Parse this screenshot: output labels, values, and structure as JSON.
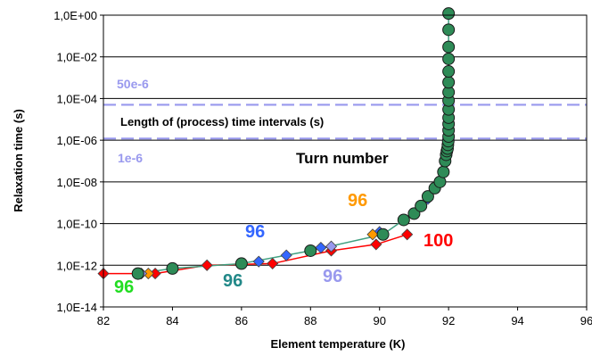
{
  "chart_data": {
    "type": "scatter",
    "xlabel": "Element temperature (K)",
    "ylabel": "Relaxation time (s)",
    "xlim": [
      82,
      96
    ],
    "ylim_log10": [
      -14,
      0
    ],
    "x_ticks": [
      "82",
      "84",
      "86",
      "88",
      "90",
      "92",
      "94",
      "96"
    ],
    "y_ticks": [
      "1,0E-14",
      "1,0E-12",
      "1,0E-10",
      "1,0E-08",
      "1,0E-06",
      "1,0E-04",
      "1,0E-02",
      "1,0E+00"
    ],
    "grid": "horizontal",
    "plot_border_color": "#000000",
    "reference_lines": [
      {
        "y": 5e-05,
        "color": "#9999ee",
        "style": "dashed"
      },
      {
        "y": 1.2e-06,
        "color": "#9999ee",
        "style": "dashed"
      }
    ],
    "series": [
      {
        "color": "#ff0000",
        "marker": "diamond",
        "x": [
          82.0,
          83.0,
          83.5,
          85.0,
          86.9,
          88.6,
          89.9,
          90.8
        ],
        "y": [
          4e-13,
          4e-13,
          4e-13,
          1e-12,
          1.2e-12,
          5e-12,
          1e-11,
          3e-11
        ]
      },
      {
        "color": "#3366ff",
        "marker": "diamond",
        "x": [
          86.5,
          87.3,
          88.3,
          90.0,
          91.4
        ],
        "y": [
          1.5e-12,
          3e-12,
          7e-12,
          4e-11,
          1.5e-09
        ]
      },
      {
        "color": "#ff9900",
        "marker": "diamond",
        "x": [
          83.3,
          89.8
        ],
        "y": [
          4e-13,
          3e-11
        ]
      },
      {
        "color": "#9999ee",
        "marker": "diamond",
        "x": [
          83.1,
          88.6
        ],
        "y": [
          4e-13,
          8e-12
        ]
      },
      {
        "color": "#2e8b57",
        "marker": "circle",
        "connector": "#40a080",
        "x": [
          83.0,
          84.0,
          86.0,
          88.0,
          90.1,
          90.7,
          91.0,
          91.2,
          91.4,
          91.6,
          91.75,
          91.85,
          91.9,
          91.93,
          91.95,
          91.97,
          91.98,
          91.99,
          92.0,
          92.0,
          92.0,
          92.0,
          92.0,
          92.0,
          92.0,
          92.0,
          92.0,
          92.0,
          92.0,
          92.0,
          92.0
        ],
        "y": [
          4e-13,
          7e-13,
          1.2e-12,
          5e-12,
          3e-11,
          1.5e-10,
          3e-10,
          7e-10,
          2e-09,
          5e-09,
          1e-08,
          3e-08,
          1e-07,
          2e-07,
          3e-07,
          4e-07,
          6e-07,
          9e-07,
          1.5e-06,
          3e-06,
          6e-06,
          1.2e-05,
          3e-05,
          8e-05,
          0.0002,
          0.0006,
          0.002,
          0.008,
          0.03,
          0.2,
          1.2
        ]
      }
    ],
    "annotations": [
      {
        "text": "50e-6",
        "color": "#9999ee",
        "size": 14
      },
      {
        "text": "Length of (process) time intervals (s)",
        "color": "#000000",
        "size": 13
      },
      {
        "text": "1e-6",
        "color": "#9999ee",
        "size": 14
      },
      {
        "text": "Turn number",
        "color": "#000000",
        "size": 17
      },
      {
        "text": "96",
        "color": "#ff9900",
        "size": 20
      },
      {
        "text": "96",
        "color": "#3366ff",
        "size": 20
      },
      {
        "text": "100",
        "color": "#ff0000",
        "size": 20
      },
      {
        "text": "96",
        "color": "#22dd22",
        "size": 20
      },
      {
        "text": "96",
        "color": "#228888",
        "size": 20
      },
      {
        "text": "96",
        "color": "#9999ee",
        "size": 20
      }
    ]
  }
}
